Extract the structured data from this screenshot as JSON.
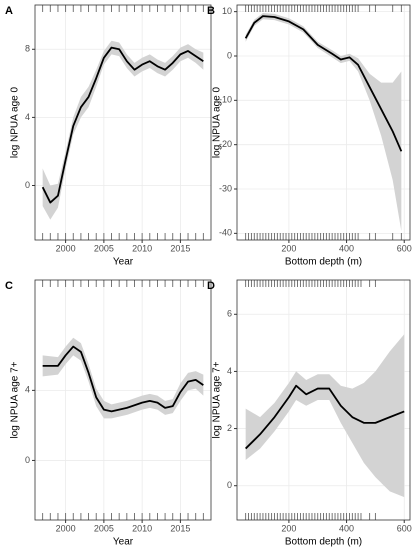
{
  "chart_data": [
    {
      "type": "line",
      "tag": "A",
      "xlabel": "Year",
      "ylabel": "log NPUA age 0",
      "x": [
        1997,
        1998,
        1999,
        2000,
        2001,
        2002,
        2003,
        2004,
        2005,
        2006,
        2007,
        2008,
        2009,
        2010,
        2011,
        2012,
        2013,
        2014,
        2015,
        2016,
        2017,
        2018
      ],
      "values": [
        -0.1,
        -1.0,
        -0.6,
        1.5,
        3.5,
        4.6,
        5.2,
        6.3,
        7.5,
        8.1,
        8.0,
        7.3,
        6.8,
        7.1,
        7.3,
        7.0,
        6.8,
        7.2,
        7.7,
        7.9,
        7.6,
        7.3
      ],
      "lower": [
        -1.2,
        -2.0,
        -1.3,
        1.0,
        3.0,
        4.0,
        4.6,
        5.8,
        7.1,
        7.7,
        7.6,
        6.9,
        6.4,
        6.7,
        6.9,
        6.6,
        6.4,
        6.8,
        7.3,
        7.5,
        7.2,
        6.8
      ],
      "upper": [
        1.0,
        0.0,
        0.1,
        2.0,
        4.0,
        5.2,
        5.8,
        6.8,
        7.9,
        8.5,
        8.4,
        7.7,
        7.2,
        7.5,
        7.7,
        7.4,
        7.2,
        7.6,
        8.1,
        8.3,
        8.0,
        7.8
      ],
      "rug": [
        1997,
        1998,
        1999,
        2000,
        2001,
        2002,
        2003,
        2004,
        2005,
        2006,
        2007,
        2008,
        2009,
        2010,
        2011,
        2012,
        2013,
        2014,
        2015,
        2016,
        2017,
        2018
      ],
      "xlim": [
        1996,
        2019
      ],
      "ylim": [
        -3.2,
        10.6
      ],
      "xticks": [
        2000,
        2005,
        2010,
        2015
      ],
      "yticks": [
        0,
        4,
        8
      ],
      "grid": true,
      "color": "#000000",
      "band_color": "#d3d3d3"
    },
    {
      "type": "line",
      "tag": "B",
      "xlabel": "Bottom depth (m)",
      "ylabel": "log NPUA age 0",
      "x": [
        50,
        80,
        110,
        150,
        200,
        250,
        300,
        350,
        380,
        410,
        440,
        480,
        520,
        560,
        590
      ],
      "values": [
        4.0,
        7.5,
        9.0,
        8.8,
        7.8,
        6.0,
        2.5,
        0.5,
        -0.8,
        -0.3,
        -2,
        -7,
        -12,
        -17,
        -21.5
      ],
      "lower": [
        3.2,
        6.8,
        8.3,
        8.1,
        7.1,
        5.3,
        1.8,
        -0.3,
        -1.6,
        -1.1,
        -3.5,
        -10,
        -18,
        -28,
        -39.5
      ],
      "upper": [
        4.8,
        8.2,
        9.7,
        9.5,
        8.5,
        6.7,
        3.2,
        1.3,
        0.0,
        0.5,
        -0.5,
        -4,
        -6,
        -6,
        -3.5
      ],
      "rug": [
        50,
        60,
        70,
        80,
        90,
        100,
        110,
        120,
        130,
        140,
        150,
        160,
        170,
        180,
        190,
        200,
        210,
        220,
        230,
        240,
        250,
        260,
        270,
        280,
        290,
        300,
        310,
        320,
        330,
        340,
        350,
        360,
        370,
        380,
        390,
        400,
        410,
        420,
        430,
        440,
        480,
        500,
        560,
        590
      ],
      "xlim": [
        20,
        620
      ],
      "ylim": [
        -41.5,
        11.5
      ],
      "xticks": [
        200,
        400,
        600
      ],
      "yticks": [
        -40,
        -30,
        -20,
        -10,
        0,
        10
      ],
      "grid": true,
      "color": "#000000",
      "band_color": "#d3d3d3"
    },
    {
      "type": "line",
      "tag": "C",
      "xlabel": "Year",
      "ylabel": "log NPUA age 7+",
      "x": [
        1997,
        1999,
        2000,
        2001,
        2002,
        2003,
        2004,
        2005,
        2006,
        2008,
        2010,
        2011,
        2012,
        2013,
        2014,
        2015,
        2016,
        2017,
        2018
      ],
      "values": [
        5.4,
        5.4,
        6.0,
        6.5,
        6.2,
        5.0,
        3.6,
        2.9,
        2.8,
        3.0,
        3.3,
        3.4,
        3.3,
        3.0,
        3.1,
        3.9,
        4.5,
        4.6,
        4.3
      ],
      "lower": [
        4.8,
        4.9,
        5.5,
        6.0,
        5.7,
        4.5,
        3.1,
        2.4,
        2.4,
        2.6,
        2.9,
        3.0,
        2.9,
        2.6,
        2.7,
        3.4,
        4.0,
        4.1,
        3.7
      ],
      "upper": [
        6.0,
        5.9,
        6.5,
        7.0,
        6.7,
        5.5,
        4.1,
        3.4,
        3.2,
        3.4,
        3.7,
        3.8,
        3.7,
        3.4,
        3.5,
        4.4,
        5.0,
        5.1,
        4.9
      ],
      "rug": [
        1997,
        1998,
        1999,
        2000,
        2001,
        2002,
        2003,
        2004,
        2005,
        2006,
        2007,
        2008,
        2009,
        2010,
        2011,
        2012,
        2013,
        2014,
        2015,
        2016,
        2017,
        2018
      ],
      "xlim": [
        1996,
        2019
      ],
      "ylim": [
        -3.4,
        10.3
      ],
      "xticks": [
        2000,
        2005,
        2010,
        2015
      ],
      "yticks": [
        0,
        4
      ],
      "grid": true,
      "color": "#000000",
      "band_color": "#d3d3d3"
    },
    {
      "type": "line",
      "tag": "D",
      "xlabel": "Bottom depth (m)",
      "ylabel": "log NPUA age 7+",
      "x": [
        50,
        100,
        150,
        200,
        225,
        260,
        300,
        340,
        380,
        420,
        460,
        500,
        550,
        600
      ],
      "values": [
        1.3,
        1.8,
        2.4,
        3.1,
        3.5,
        3.2,
        3.4,
        3.4,
        2.8,
        2.4,
        2.2,
        2.2,
        2.4,
        2.6
      ],
      "lower": [
        0.9,
        1.3,
        1.9,
        2.6,
        3.0,
        2.8,
        3.0,
        3.0,
        2.2,
        1.5,
        0.8,
        0.3,
        -0.2,
        -0.4
      ],
      "upper": [
        2.7,
        2.4,
        2.9,
        3.6,
        4.0,
        3.7,
        3.9,
        3.9,
        3.5,
        3.4,
        3.6,
        4.0,
        4.7,
        5.3
      ],
      "rug": [
        50,
        60,
        70,
        80,
        90,
        100,
        110,
        120,
        130,
        140,
        150,
        160,
        170,
        180,
        190,
        200,
        210,
        220,
        230,
        240,
        250,
        260,
        270,
        280,
        290,
        300,
        310,
        320,
        330,
        340,
        350,
        360,
        370,
        380,
        390,
        400,
        410,
        420,
        430,
        440,
        450,
        480,
        500
      ],
      "xlim": [
        20,
        620
      ],
      "ylim": [
        -1.2,
        7.2
      ],
      "xticks": [
        200,
        400,
        600
      ],
      "yticks": [
        0,
        2,
        4,
        6
      ],
      "grid": true,
      "color": "#000000",
      "band_color": "#d3d3d3"
    }
  ]
}
